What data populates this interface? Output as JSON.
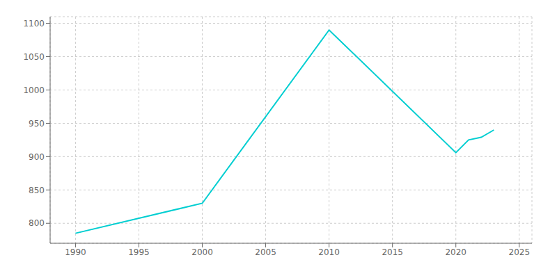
{
  "chart_data": {
    "type": "line",
    "x": [
      1990,
      2000,
      2010,
      2020,
      2021,
      2022,
      2023
    ],
    "values": [
      785,
      830,
      1090,
      906,
      925,
      929,
      940
    ],
    "color": "#00CED1",
    "xlim": [
      1988,
      2026
    ],
    "ylim": [
      770,
      1110
    ],
    "xticks": [
      1990,
      1995,
      2000,
      2005,
      2010,
      2015,
      2020,
      2025
    ],
    "yticks": [
      800,
      850,
      900,
      950,
      1000,
      1050,
      1100
    ],
    "grid": true
  }
}
